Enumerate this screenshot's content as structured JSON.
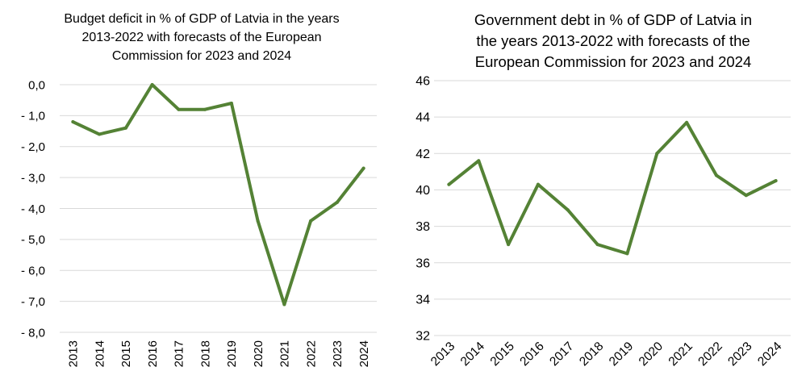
{
  "colors": {
    "series": "#548235",
    "grid": "#d9d9d9"
  },
  "chart_data": [
    {
      "type": "line",
      "title": "Budget deficit in % of GDP of Latvia in the years\n2013-2022 with forecasts of the European\nCommission for 2023 and 2024",
      "categories": [
        "2013",
        "2014",
        "2015",
        "2016",
        "2017",
        "2018",
        "2019",
        "2020",
        "2021",
        "2022",
        "2023",
        "2024"
      ],
      "series": [
        {
          "values": [
            -1.2,
            -1.6,
            -1.4,
            0.0,
            -0.8,
            -0.8,
            -0.6,
            -4.4,
            -7.1,
            -4.4,
            -3.8,
            -2.7
          ]
        }
      ],
      "ylim": [
        -8,
        0
      ],
      "yticks": [
        "0,0",
        "- 1,0",
        "- 2,0",
        "- 3,0",
        "- 4,0",
        "- 5,0",
        "- 6,0",
        "- 7,0",
        "- 8,0"
      ],
      "grid": true,
      "xlabel_rotation": "vertical"
    },
    {
      "type": "line",
      "title": "Government debt in % of GDP of Latvia in\nthe years 2013-2022 with forecasts of the\nEuropean Commission for 2023 and 2024",
      "categories": [
        "2013",
        "2014",
        "2015",
        "2016",
        "2017",
        "2018",
        "2019",
        "2020",
        "2021",
        "2022",
        "2023",
        "2024"
      ],
      "series": [
        {
          "values": [
            40.3,
            41.6,
            37.0,
            40.3,
            38.9,
            37.0,
            36.5,
            42.0,
            43.7,
            40.8,
            39.7,
            40.5
          ]
        }
      ],
      "ylim": [
        32,
        46
      ],
      "yticks": [
        "46",
        "44",
        "42",
        "40",
        "38",
        "36",
        "34",
        "32"
      ],
      "grid": true,
      "xlabel_rotation": "diagonal"
    }
  ]
}
